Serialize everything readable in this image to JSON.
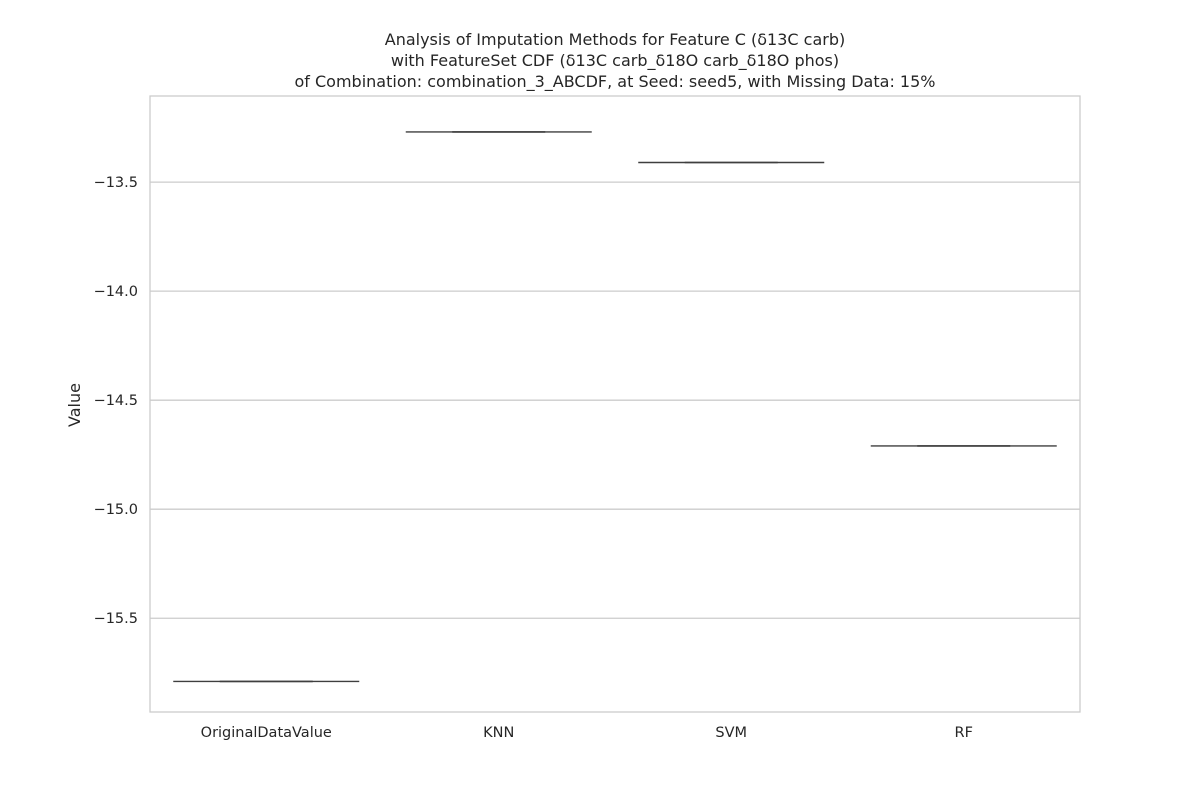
{
  "chart_data": {
    "type": "box",
    "title_lines": [
      "Analysis of Imputation Methods for Feature C (δ13C carb)",
      "with FeatureSet CDF (δ13C carb_δ18O carb_δ18O phos)",
      "of Combination: combination_3_ABCDF, at Seed: seed5, with Missing Data: 15%"
    ],
    "xlabel": "",
    "ylabel": "Value",
    "categories": [
      "OriginalDataValue",
      "KNN",
      "SVM",
      "RF"
    ],
    "values": [
      -15.79,
      -13.27,
      -13.41,
      -14.71
    ],
    "ylim": [
      -15.93,
      -13.105
    ],
    "yticks": [
      -15.5,
      -15.0,
      -14.5,
      -14.0,
      -13.5
    ],
    "ytick_labels": [
      "−15.5",
      "−15.0",
      "−14.5",
      "−14.0",
      "−13.5"
    ],
    "grid": "horizontal",
    "colors": {
      "grid": "#cccccc",
      "spine": "#cccccc",
      "box_line": "#3f3f3f",
      "text": "#262626"
    }
  }
}
